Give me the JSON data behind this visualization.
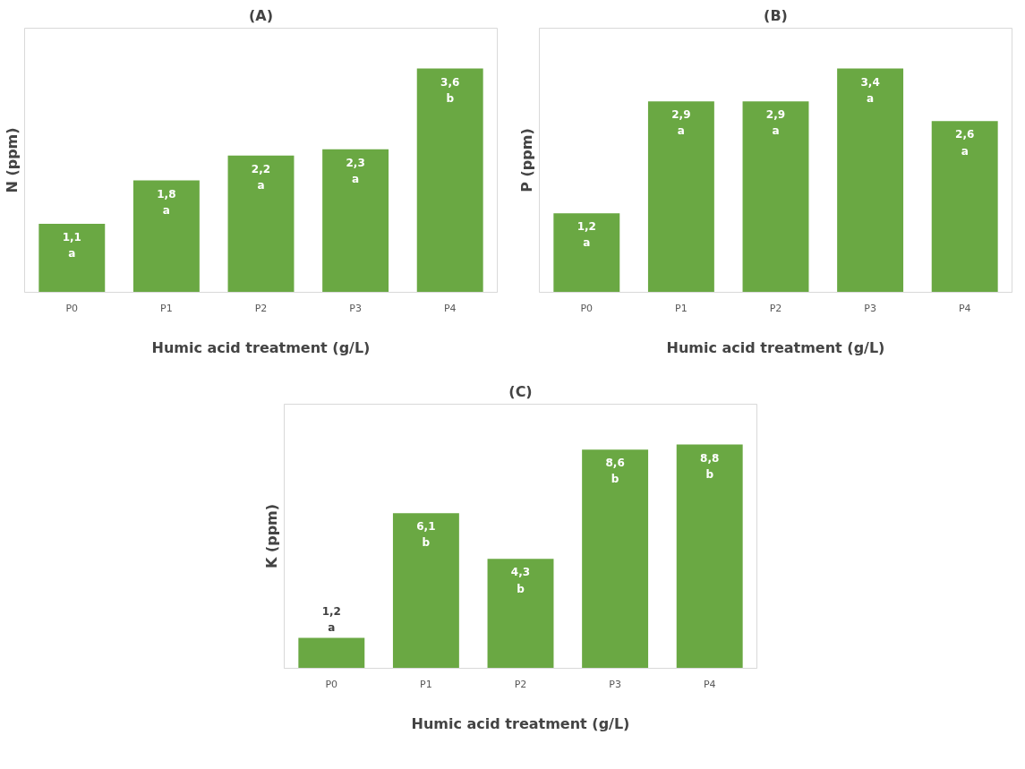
{
  "chart_data": [
    {
      "type": "bar",
      "title": "(A)",
      "ylabel": "N (ppm)",
      "xlabel": "Humic acid treatment (g/L)",
      "categories": [
        "P0",
        "P1",
        "P2",
        "P3",
        "P4"
      ],
      "color": "#6aa843",
      "values": [
        1.1,
        1.8,
        2.2,
        2.3,
        3.6
      ],
      "value_labels": [
        "1,1\na",
        "1,8\na",
        "2,2\na",
        "2,3\na",
        "3,6\nb"
      ],
      "tick_labels": "x",
      "grid": false
    },
    {
      "type": "bar",
      "title": "(B)",
      "ylabel": "P (ppm)",
      "xlabel": "Humic acid treatment (g/L)",
      "categories": [
        "P0",
        "P1",
        "P2",
        "P3",
        "P4"
      ],
      "color": "#6aa843",
      "values": [
        1.2,
        2.9,
        2.9,
        3.4,
        2.6
      ],
      "value_labels": [
        "1,2\na",
        "2,9\na",
        "2,9\na",
        "3,4\na",
        "2,6\na"
      ],
      "tick_labels": "x",
      "grid": false
    },
    {
      "type": "bar",
      "title": "(C)",
      "ylabel": "K (ppm)",
      "xlabel": "Humic acid treatment (g/L)",
      "categories": [
        "P0",
        "P1",
        "P2",
        "P3",
        "P4"
      ],
      "color": "#6aa843",
      "values": [
        1.2,
        6.1,
        4.3,
        8.6,
        8.8
      ],
      "value_labels": [
        "1,2\na",
        "6,1\nb",
        "4,3\nb",
        "8,6\nb",
        "8,8\nb"
      ],
      "tick_labels": "x",
      "grid": false
    }
  ]
}
